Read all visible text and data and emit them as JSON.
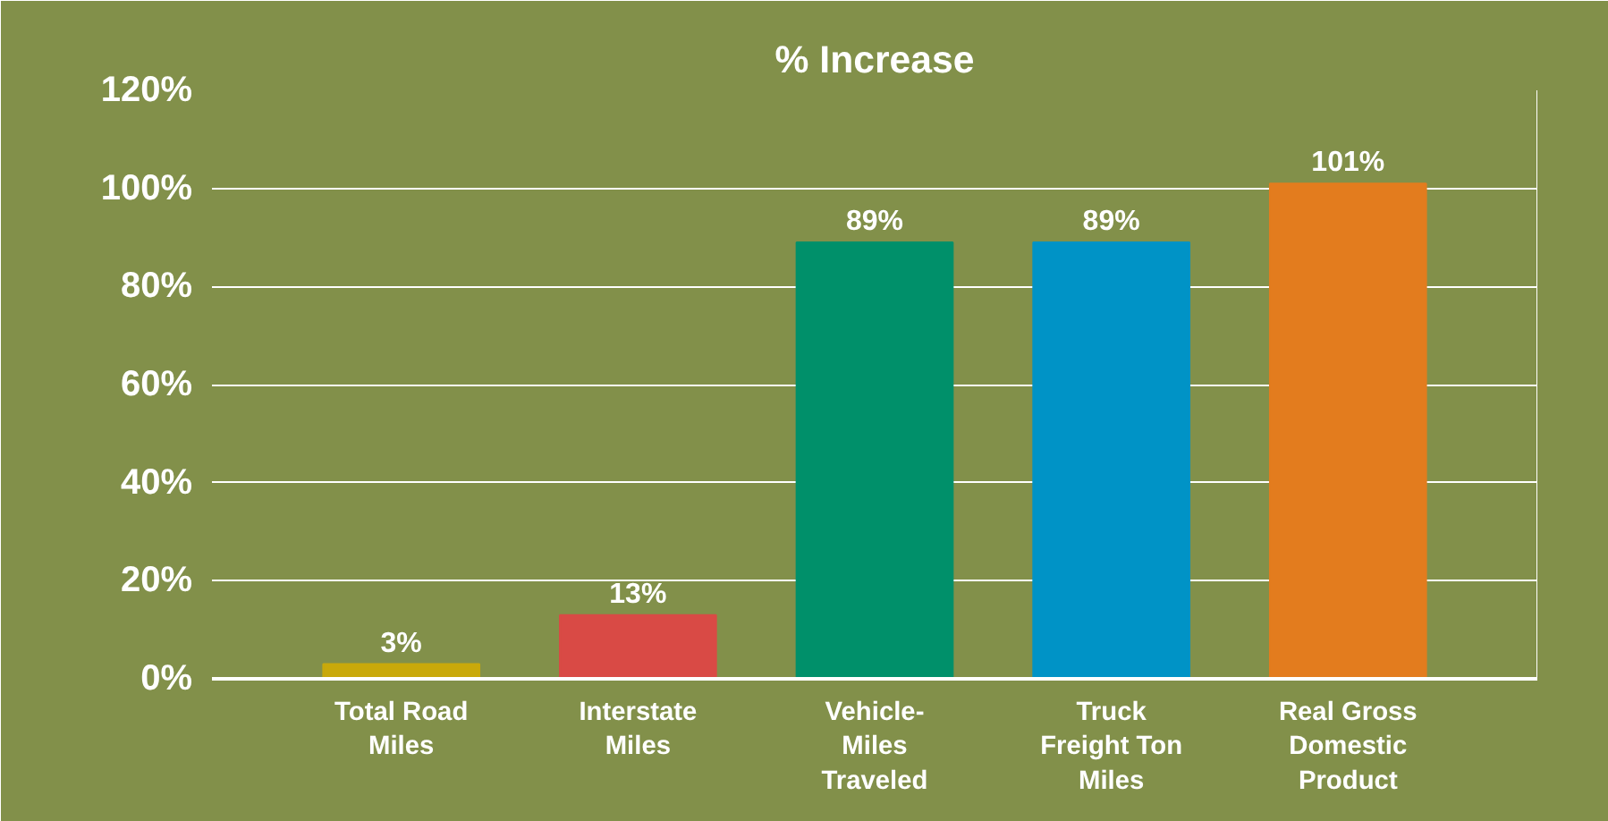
{
  "chart_data": {
    "type": "bar",
    "title": "% Increase",
    "categories": [
      "Total Road\nMiles",
      "Interstate\nMiles",
      "Vehicle-\nMiles\nTraveled",
      "Truck\nFreight Ton\nMiles",
      "Real Gross\nDomestic\nProduct"
    ],
    "values": [
      3,
      13,
      89,
      89,
      101
    ],
    "colors": [
      "#c9a90a",
      "#d94a45",
      "#00906a",
      "#0093c6",
      "#e37c1e"
    ],
    "value_labels": [
      "3%",
      "13%",
      "89%",
      "89%",
      "101%"
    ],
    "ylim": [
      0,
      120
    ],
    "yticks": [
      {
        "value": 0,
        "label": "0%"
      },
      {
        "value": 20,
        "label": "20%"
      },
      {
        "value": 40,
        "label": "40%"
      },
      {
        "value": 60,
        "label": "60%"
      },
      {
        "value": 80,
        "label": "80%"
      },
      {
        "value": 100,
        "label": "100%"
      },
      {
        "value": 120,
        "label": "120%"
      }
    ],
    "grid": "y"
  }
}
